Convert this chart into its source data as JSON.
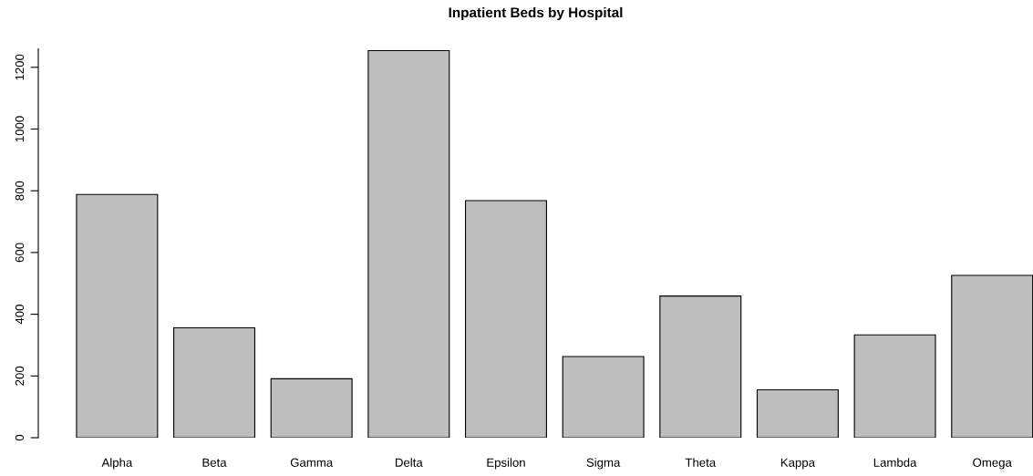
{
  "chart_data": {
    "type": "bar",
    "title": "Inpatient Beds by Hospital",
    "categories": [
      "Alpha",
      "Beta",
      "Gamma",
      "Delta",
      "Epsilon",
      "Sigma",
      "Theta",
      "Kappa",
      "Lambda",
      "Omega"
    ],
    "values": [
      788,
      356,
      191,
      1254,
      768,
      263,
      459,
      155,
      333,
      526
    ],
    "color": "#bebebe",
    "ylim": [
      0,
      1260
    ],
    "yticks": [
      0,
      200,
      400,
      600,
      800,
      1000,
      1200
    ],
    "grid": false
  }
}
